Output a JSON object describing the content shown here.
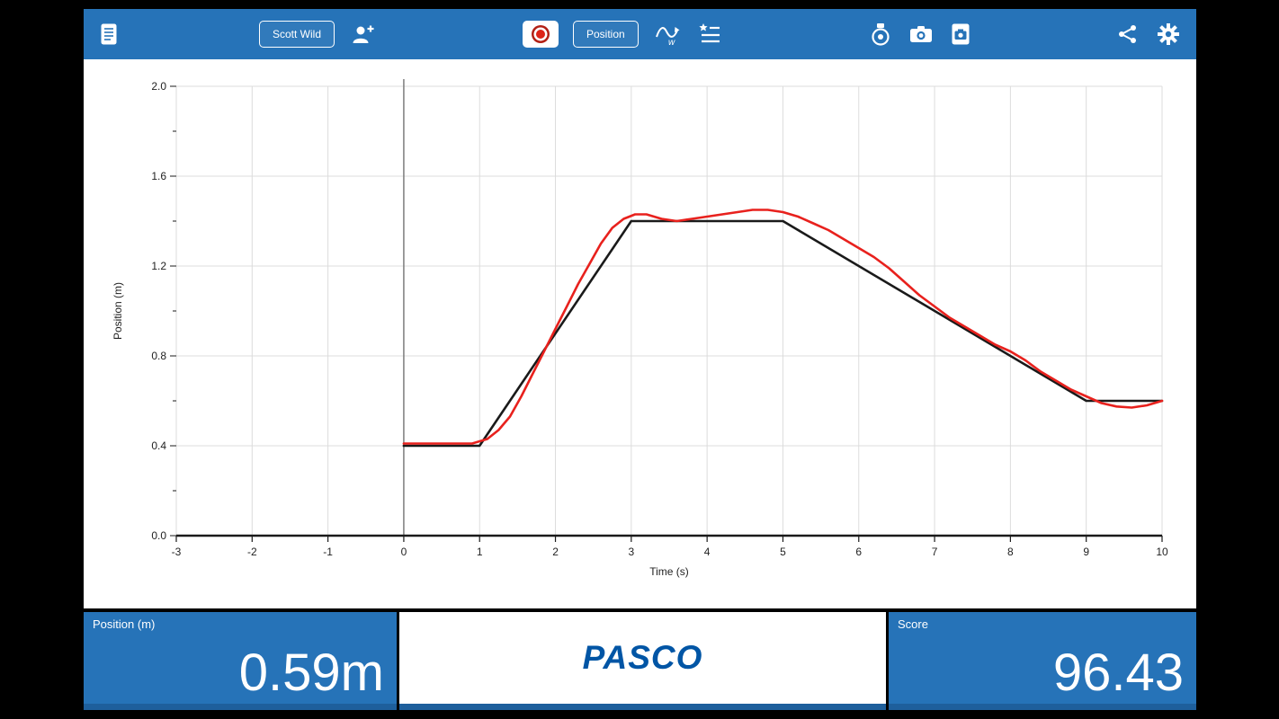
{
  "toolbar": {
    "user_button": "Scott Wild",
    "mode_button": "Position",
    "icons": [
      "journal-icon",
      "add-user-icon",
      "record-button",
      "match-graph-icon",
      "steps-list-icon",
      "sensor-icon",
      "camera-icon",
      "snapshot-icon",
      "share-icon",
      "settings-gear-icon"
    ]
  },
  "chart_data": {
    "type": "line",
    "title": "",
    "xlabel": "Time (s)",
    "ylabel": "Position (m)",
    "xlim": [
      -3,
      10
    ],
    "ylim": [
      0,
      2.0
    ],
    "xticks": [
      -3,
      -2,
      -1,
      0,
      1,
      2,
      3,
      4,
      5,
      6,
      7,
      8,
      9,
      10
    ],
    "yticks": [
      0.0,
      0.4,
      0.8,
      1.2,
      1.6,
      2.0
    ],
    "grid": true,
    "legend": "none",
    "series": [
      {
        "name": "target-path",
        "color": "#1a1a1a",
        "width": 2.6,
        "points": [
          [
            0,
            0.4
          ],
          [
            1,
            0.4
          ],
          [
            3,
            1.4
          ],
          [
            5,
            1.4
          ],
          [
            9,
            0.6
          ],
          [
            10,
            0.6
          ]
        ]
      },
      {
        "name": "measured-position",
        "color": "#e8211d",
        "width": 2.6,
        "points": [
          [
            0,
            0.41
          ],
          [
            0.3,
            0.41
          ],
          [
            0.6,
            0.41
          ],
          [
            0.9,
            0.41
          ],
          [
            1.1,
            0.43
          ],
          [
            1.25,
            0.47
          ],
          [
            1.4,
            0.53
          ],
          [
            1.55,
            0.62
          ],
          [
            1.7,
            0.72
          ],
          [
            1.85,
            0.82
          ],
          [
            2.0,
            0.92
          ],
          [
            2.15,
            1.02
          ],
          [
            2.3,
            1.12
          ],
          [
            2.45,
            1.21
          ],
          [
            2.6,
            1.3
          ],
          [
            2.75,
            1.37
          ],
          [
            2.9,
            1.41
          ],
          [
            3.05,
            1.43
          ],
          [
            3.2,
            1.43
          ],
          [
            3.4,
            1.41
          ],
          [
            3.6,
            1.4
          ],
          [
            3.8,
            1.41
          ],
          [
            4.0,
            1.42
          ],
          [
            4.2,
            1.43
          ],
          [
            4.4,
            1.44
          ],
          [
            4.6,
            1.45
          ],
          [
            4.8,
            1.45
          ],
          [
            5.0,
            1.44
          ],
          [
            5.2,
            1.42
          ],
          [
            5.4,
            1.39
          ],
          [
            5.6,
            1.36
          ],
          [
            5.8,
            1.32
          ],
          [
            6.0,
            1.28
          ],
          [
            6.2,
            1.24
          ],
          [
            6.4,
            1.19
          ],
          [
            6.6,
            1.13
          ],
          [
            6.8,
            1.07
          ],
          [
            7.0,
            1.02
          ],
          [
            7.2,
            0.97
          ],
          [
            7.4,
            0.93
          ],
          [
            7.6,
            0.89
          ],
          [
            7.8,
            0.85
          ],
          [
            8.0,
            0.82
          ],
          [
            8.2,
            0.78
          ],
          [
            8.4,
            0.73
          ],
          [
            8.6,
            0.69
          ],
          [
            8.8,
            0.65
          ],
          [
            9.0,
            0.62
          ],
          [
            9.2,
            0.59
          ],
          [
            9.4,
            0.575
          ],
          [
            9.6,
            0.57
          ],
          [
            9.8,
            0.58
          ],
          [
            10.0,
            0.6
          ]
        ]
      }
    ]
  },
  "bottom_bar": {
    "position_label": "Position (m)",
    "position_value": "0.59m",
    "logo_text": "PASCO",
    "score_label": "Score",
    "score_value": "96.43"
  },
  "colors": {
    "toolbar_blue": "#2673b8",
    "panel_blue": "#2673b8",
    "target_line": "#1a1a1a",
    "measured_line": "#e8211d",
    "logo_blue": "#0055a5",
    "record_red": "#dd2418"
  }
}
